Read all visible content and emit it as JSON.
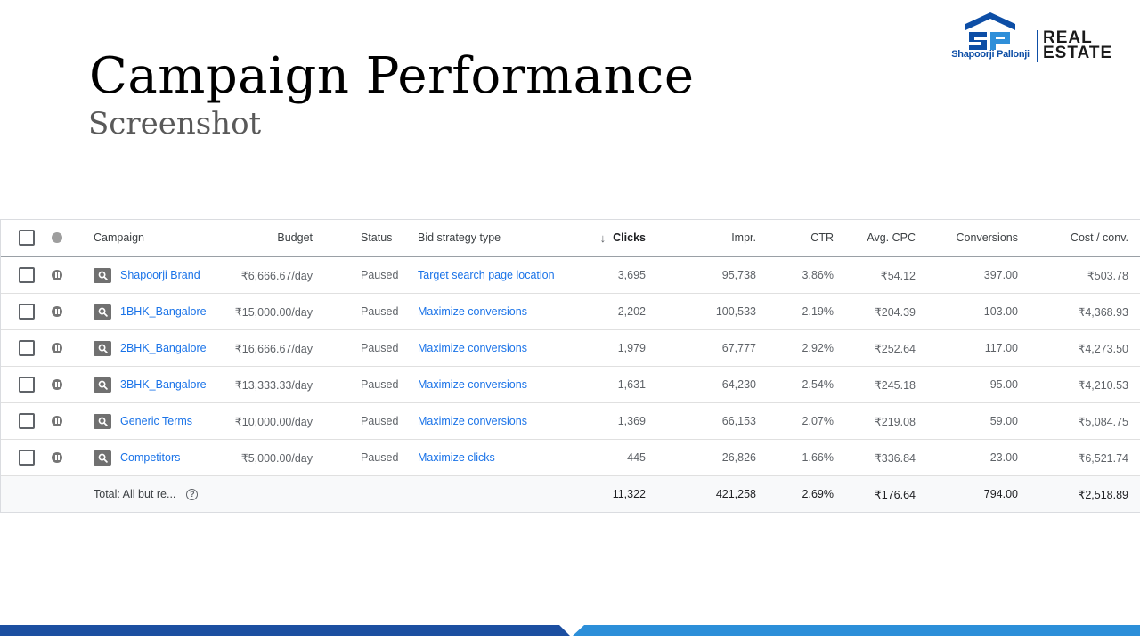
{
  "slide": {
    "title": "Campaign Performance",
    "subtitle": "Screenshot"
  },
  "logo": {
    "company": "Shapoorji Pallonji",
    "line1": "REAL",
    "line2": "ESTATE",
    "colors": {
      "primary": "#0d4ea6",
      "secondary": "#2f8fd9"
    }
  },
  "table": {
    "headers": {
      "campaign": "Campaign",
      "budget": "Budget",
      "status": "Status",
      "bid": "Bid strategy type",
      "sort_icon": "↓",
      "clicks": "Clicks",
      "impr": "Impr.",
      "ctr": "CTR",
      "cpc": "Avg. CPC",
      "conversions": "Conversions",
      "cost_conv": "Cost / conv."
    },
    "rows": [
      {
        "campaign": "Shapoorji Brand",
        "budget": "₹6,666.67/day",
        "status": "Paused",
        "bid": "Target search page location",
        "clicks": "3,695",
        "impr": "95,738",
        "ctr": "3.86%",
        "cpc": "₹54.12",
        "conversions": "397.00",
        "cost_conv": "₹503.78"
      },
      {
        "campaign": "1BHK_Bangalore",
        "budget": "₹15,000.00/day",
        "status": "Paused",
        "bid": "Maximize conversions",
        "clicks": "2,202",
        "impr": "100,533",
        "ctr": "2.19%",
        "cpc": "₹204.39",
        "conversions": "103.00",
        "cost_conv": "₹4,368.93"
      },
      {
        "campaign": "2BHK_Bangalore",
        "budget": "₹16,666.67/day",
        "status": "Paused",
        "bid": "Maximize conversions",
        "clicks": "1,979",
        "impr": "67,777",
        "ctr": "2.92%",
        "cpc": "₹252.64",
        "conversions": "117.00",
        "cost_conv": "₹4,273.50"
      },
      {
        "campaign": "3BHK_Bangalore",
        "budget": "₹13,333.33/day",
        "status": "Paused",
        "bid": "Maximize conversions",
        "clicks": "1,631",
        "impr": "64,230",
        "ctr": "2.54%",
        "cpc": "₹245.18",
        "conversions": "95.00",
        "cost_conv": "₹4,210.53"
      },
      {
        "campaign": "Generic Terms",
        "budget": "₹10,000.00/day",
        "status": "Paused",
        "bid": "Maximize conversions",
        "clicks": "1,369",
        "impr": "66,153",
        "ctr": "2.07%",
        "cpc": "₹219.08",
        "conversions": "59.00",
        "cost_conv": "₹5,084.75"
      },
      {
        "campaign": "Competitors",
        "budget": "₹5,000.00/day",
        "status": "Paused",
        "bid": "Maximize clicks",
        "clicks": "445",
        "impr": "26,826",
        "ctr": "1.66%",
        "cpc": "₹336.84",
        "conversions": "23.00",
        "cost_conv": "₹6,521.74"
      }
    ],
    "total": {
      "label": "Total: All but re...",
      "help_icon": "?",
      "clicks": "11,322",
      "impr": "421,258",
      "ctr": "2.69%",
      "cpc": "₹176.64",
      "conversions": "794.00",
      "cost_conv": "₹2,518.89"
    },
    "icons": {
      "row_status": "pause-icon",
      "campaign_type": "search-icon",
      "help": "help-icon"
    }
  },
  "footer": {
    "colors": {
      "dark": "#1c4fa1",
      "light": "#2c8fd9"
    }
  }
}
